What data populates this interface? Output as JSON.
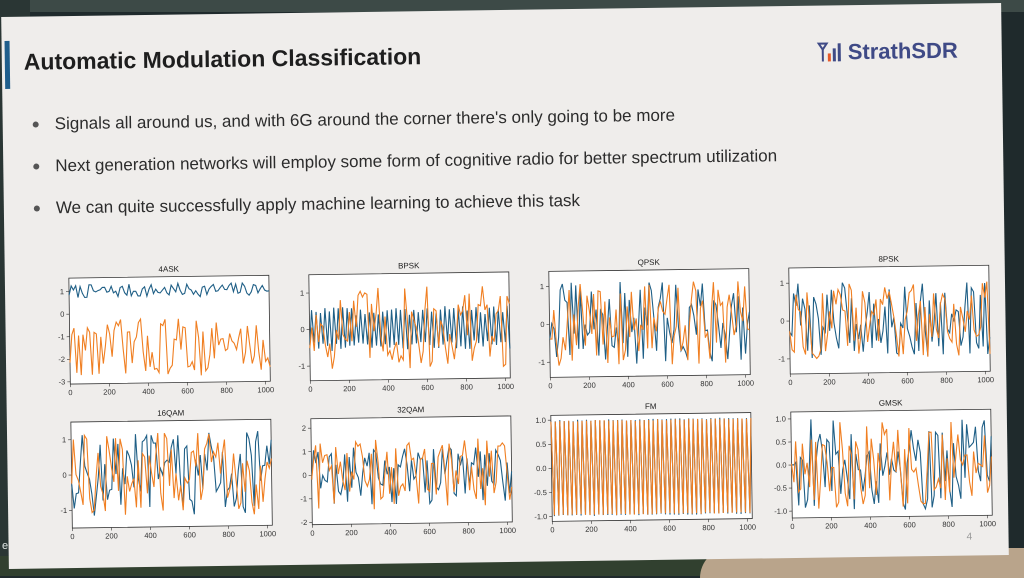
{
  "slide": {
    "title": "Automatic Modulation Classification",
    "logo_text": "StrathSDR",
    "page_number": "4",
    "bullets": [
      "Signals all around us, and with 6G around the corner there's only going to be more",
      "Next generation networks will employ some form of cognitive radio for better spectrum utilization",
      "We can quite successfully apply machine learning to achieve this task"
    ]
  },
  "screen": {
    "left_edge_char": "e"
  },
  "colors": {
    "series_blue": "#1f5f86",
    "series_orange": "#f07f22",
    "title_accent": "#1f5e8c",
    "logo": "#3f4a86"
  },
  "chart_data": [
    {
      "type": "line",
      "title": "4ASK",
      "x_range": [
        0,
        1024
      ],
      "xticks": [
        "0",
        "200",
        "400",
        "600",
        "800",
        "1000"
      ],
      "ylim": [
        -3.1,
        1.6
      ],
      "yticks": [
        {
          "v": 1,
          "t": "1"
        },
        {
          "v": 0,
          "t": "0"
        },
        {
          "v": -1,
          "t": "-1"
        },
        {
          "v": -2,
          "t": "-2"
        },
        {
          "v": -3,
          "t": "-3"
        }
      ],
      "series": [
        {
          "color": "#1f5f86",
          "center": 1.0,
          "spread": 0.3
        },
        {
          "color": "#f07f22",
          "center": -1.5,
          "spread": 1.3
        }
      ]
    },
    {
      "type": "line",
      "title": "BPSK",
      "x_range": [
        0,
        1024
      ],
      "xticks": [
        "0",
        "200",
        "400",
        "600",
        "800",
        "1000"
      ],
      "ylim": [
        -1.4,
        1.5
      ],
      "yticks": [
        {
          "v": 1,
          "t": "1"
        },
        {
          "v": 0,
          "t": "0"
        },
        {
          "v": -1,
          "t": "-1"
        }
      ],
      "series": [
        {
          "color": "#1f5f86",
          "center": 0,
          "spread": 0.5
        },
        {
          "color": "#f07f22",
          "center": 0,
          "spread": 1.2
        }
      ]
    },
    {
      "type": "line",
      "title": "QPSK",
      "x_range": [
        0,
        1024
      ],
      "xticks": [
        "0",
        "200",
        "400",
        "600",
        "800",
        "1000"
      ],
      "ylim": [
        -1.4,
        1.4
      ],
      "yticks": [
        {
          "v": 1,
          "t": "1"
        },
        {
          "v": 0,
          "t": "0"
        },
        {
          "v": -1,
          "t": "-1"
        }
      ],
      "series": [
        {
          "color": "#1f5f86",
          "center": 0,
          "spread": 1.1
        },
        {
          "color": "#f07f22",
          "center": 0,
          "spread": 1.1
        }
      ]
    },
    {
      "type": "line",
      "title": "8PSK",
      "x_range": [
        0,
        1024
      ],
      "xticks": [
        "0",
        "200",
        "400",
        "600",
        "800",
        "1000"
      ],
      "ylim": [
        -1.4,
        1.4
      ],
      "yticks": [
        {
          "v": 1,
          "t": "1"
        },
        {
          "v": 0,
          "t": "0"
        },
        {
          "v": -1,
          "t": "-1"
        }
      ],
      "series": [
        {
          "color": "#1f5f86",
          "center": 0,
          "spread": 1.0
        },
        {
          "color": "#f07f22",
          "center": 0,
          "spread": 1.0
        }
      ]
    },
    {
      "type": "line",
      "title": "16QAM",
      "x_range": [
        0,
        1024
      ],
      "xticks": [
        "0",
        "200",
        "400",
        "600",
        "800",
        "1000"
      ],
      "ylim": [
        -1.5,
        1.5
      ],
      "yticks": [
        {
          "v": 1,
          "t": "1"
        },
        {
          "v": 0,
          "t": "0"
        },
        {
          "v": -1,
          "t": "-1"
        }
      ],
      "series": [
        {
          "color": "#1f5f86",
          "center": 0,
          "spread": 1.2
        },
        {
          "color": "#f07f22",
          "center": 0,
          "spread": 1.2
        }
      ]
    },
    {
      "type": "line",
      "title": "32QAM",
      "x_range": [
        0,
        1024
      ],
      "xticks": [
        "0",
        "200",
        "400",
        "600",
        "800",
        "1000"
      ],
      "ylim": [
        -2.1,
        2.4
      ],
      "yticks": [
        {
          "v": 2,
          "t": "2"
        },
        {
          "v": 1,
          "t": "1"
        },
        {
          "v": 0,
          "t": "0"
        },
        {
          "v": -1,
          "t": "-1"
        },
        {
          "v": -2,
          "t": "-2"
        }
      ],
      "series": [
        {
          "color": "#1f5f86",
          "center": 0,
          "spread": 1.3
        },
        {
          "color": "#f07f22",
          "center": 0,
          "spread": 1.5
        }
      ]
    },
    {
      "type": "line",
      "title": "FM",
      "x_range": [
        0,
        1024
      ],
      "xticks": [
        "0",
        "200",
        "400",
        "600",
        "800",
        "1000"
      ],
      "ylim": [
        -1.1,
        1.1
      ],
      "yticks": [
        {
          "v": 1.0,
          "t": "1.0"
        },
        {
          "v": 0.5,
          "t": "0.5"
        },
        {
          "v": 0.0,
          "t": "0.0"
        },
        {
          "v": -0.5,
          "t": "-0.5"
        },
        {
          "v": -1.0,
          "t": "-1.0"
        }
      ],
      "series": [
        {
          "color": "#1f5f86",
          "center": 0,
          "spread": 1.0
        },
        {
          "color": "#f07f22",
          "center": 0,
          "spread": 1.0
        }
      ]
    },
    {
      "type": "line",
      "title": "GMSK",
      "x_range": [
        0,
        1024
      ],
      "xticks": [
        "0",
        "200",
        "400",
        "600",
        "800",
        "1000"
      ],
      "ylim": [
        -1.15,
        1.15
      ],
      "yticks": [
        {
          "v": 1.0,
          "t": "1.0"
        },
        {
          "v": 0.5,
          "t": "0.5"
        },
        {
          "v": 0.0,
          "t": "0.0"
        },
        {
          "v": -0.5,
          "t": "-0.5"
        },
        {
          "v": -1.0,
          "t": "-1.0"
        }
      ],
      "series": [
        {
          "color": "#1f5f86",
          "center": 0,
          "spread": 1.0
        },
        {
          "color": "#f07f22",
          "center": 0,
          "spread": 1.0
        }
      ]
    }
  ]
}
